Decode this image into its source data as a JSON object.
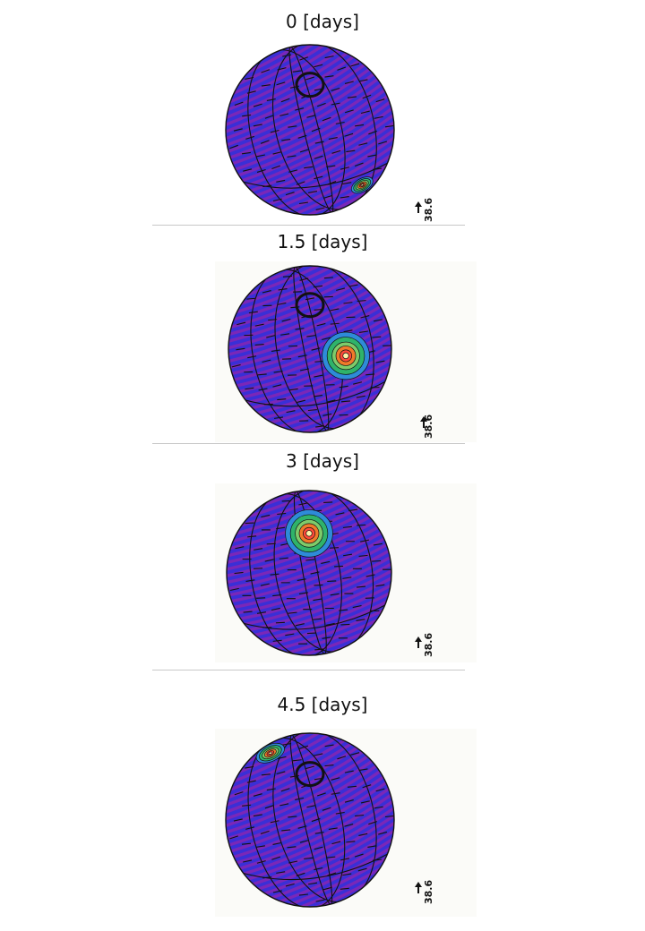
{
  "panels": [
    {
      "title": "0 [days]",
      "scale": "38.6",
      "storm": {
        "lon": 0.62,
        "lat": -0.65
      }
    },
    {
      "title": "1.5 [days]",
      "scale": "38.6",
      "storm": {
        "lon": 0.44,
        "lat": -0.08
      }
    },
    {
      "title": "3 [days]",
      "scale": "38.6",
      "storm": {
        "lon": 0.0,
        "lat": 0.48
      }
    },
    {
      "title": "4.5 [days]",
      "scale": "38.6",
      "storm": {
        "lon": -0.47,
        "lat": 0.77
      }
    }
  ],
  "colors": {
    "sphere_base": "#3a2fd6",
    "band": "#7a27b8",
    "contour": "#111111",
    "storm_outer": "#2e8bd8",
    "storm_mid": "#2fb36a",
    "storm_inner": "#f07a2a",
    "storm_core": "#ff4a3a"
  }
}
